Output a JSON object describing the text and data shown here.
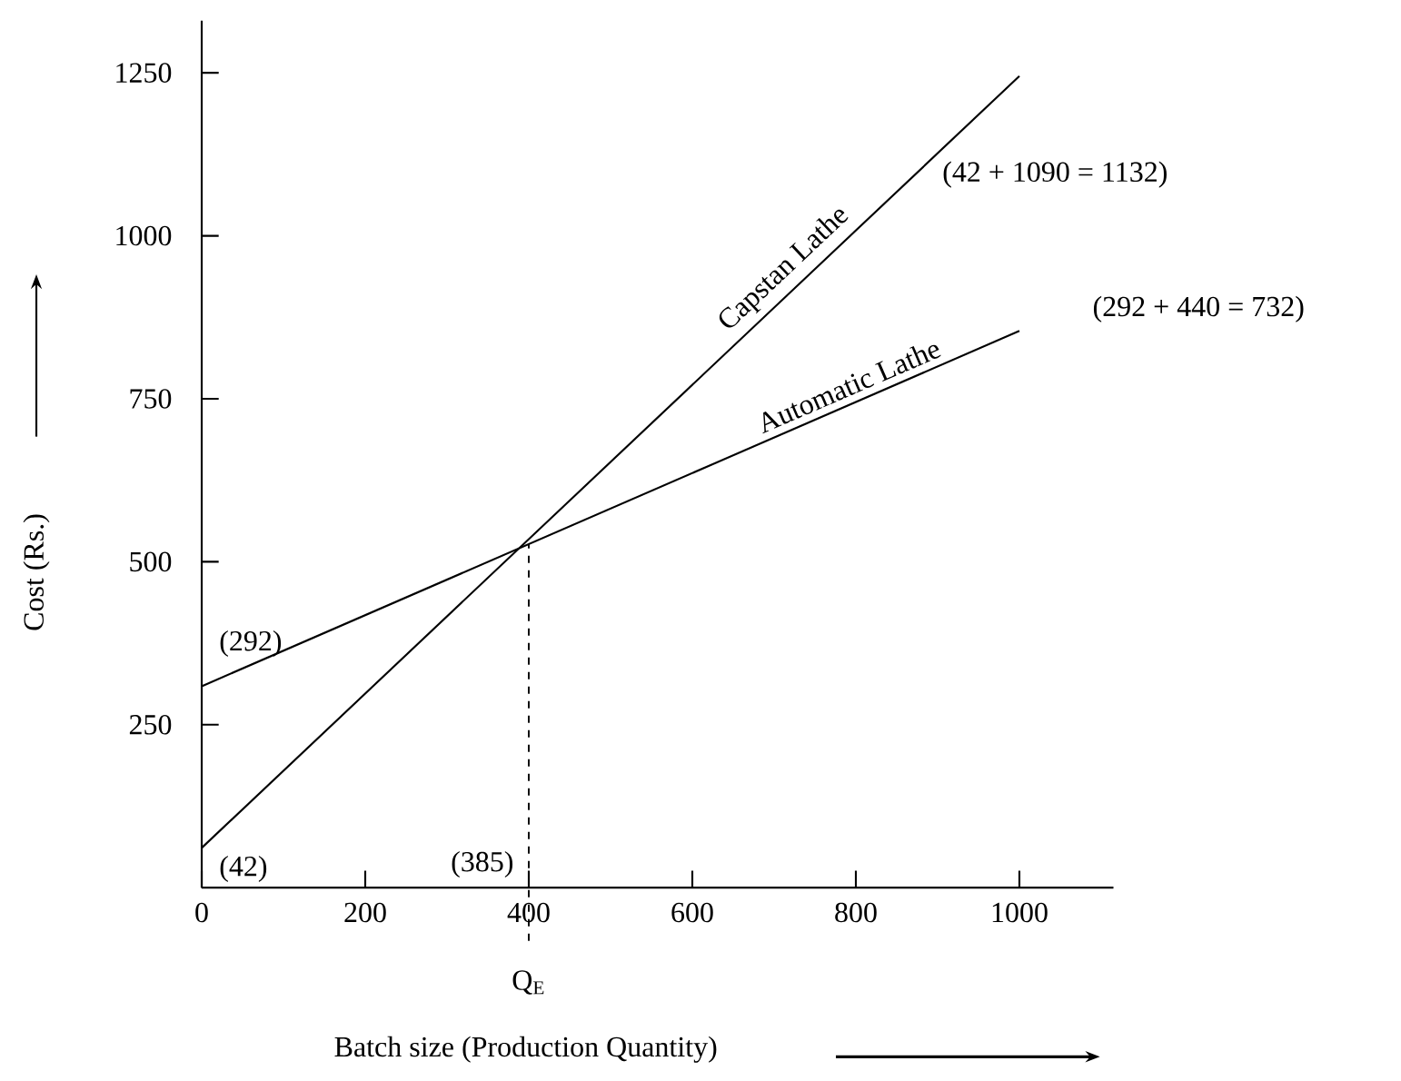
{
  "chart_data": {
    "type": "line",
    "xlabel": "Batch size (Production Quantity)",
    "ylabel": "Cost (Rs.)",
    "xlim": [
      0,
      1115
    ],
    "ylim": [
      0,
      1330
    ],
    "xticks": [
      0,
      200,
      400,
      600,
      800,
      1000
    ],
    "yticks": [
      250,
      500,
      750,
      1000,
      1250
    ],
    "x": [
      0,
      1000
    ],
    "series": [
      {
        "name": "Capstan Lathe",
        "color": "#000000",
        "values": [
          61,
          1245
        ]
      },
      {
        "name": "Automatic Lathe",
        "color": "#000000",
        "values": [
          309,
          854
        ]
      }
    ],
    "ref_lines": [
      {
        "axis": "x",
        "value": 400,
        "label": "Q$_{E}$",
        "line_style": "dashed"
      }
    ],
    "annotations": [
      {
        "text": "(42)",
        "x": 0,
        "y": 61
      },
      {
        "text": "(292)",
        "x": 0,
        "y": 309
      },
      {
        "text": "(385)",
        "x": 400,
        "y": 0
      },
      {
        "text": "(42 + 1090 = 1132)",
        "x": 1000,
        "y": 1245
      },
      {
        "text": "(292 + 440 = 732)",
        "x": 1000,
        "y": 854
      }
    ]
  }
}
